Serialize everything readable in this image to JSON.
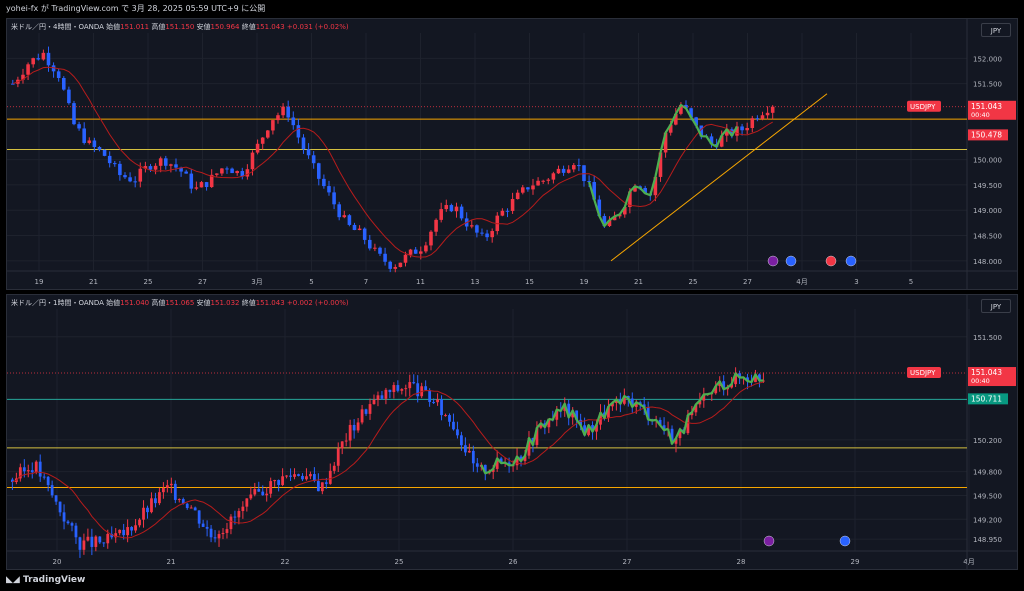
{
  "header": {
    "publish_line": "yohei-fx が TradingView.com で 3月 28, 2025 05:59 UTC+9 に公開"
  },
  "footer": {
    "brand": "TradingView"
  },
  "colors": {
    "up": "#089981",
    "bull": "#f23645",
    "bear": "#2962ff",
    "ma": "#b71c1c",
    "green": "#4caf50",
    "orange": "#f7a600",
    "yellow": "#d4c040",
    "teal": "#26a69a"
  },
  "chart_data": [
    {
      "type": "candlestick",
      "symbol_label": "米ドル／円・4時間・OANDA",
      "ohlc": {
        "open_label": "始値",
        "open": "151.011",
        "high_label": "高値",
        "high": "151.150",
        "low_label": "安値",
        "low": "150.964",
        "close_label": "終値",
        "close": "151.043",
        "change": "+0.031 (+0.02%)"
      },
      "currency_button": "JPY",
      "y_ticks": [
        "152.000",
        "151.500",
        "151.043",
        "150.478",
        "150.000",
        "149.500",
        "149.000",
        "148.500",
        "148.000"
      ],
      "y_tick_values": [
        152.0,
        151.5,
        151.043,
        150.478,
        150.0,
        149.5,
        149.0,
        148.5,
        148.0
      ],
      "ylim": [
        147.8,
        152.5
      ],
      "x_ticks": [
        "19",
        "21",
        "25",
        "27",
        "3月",
        "5",
        "7",
        "11",
        "13",
        "15",
        "19",
        "21",
        "25",
        "27",
        "4月",
        "3",
        "5"
      ],
      "price_label": {
        "symbol": "USDJPY",
        "price": "151.043",
        "countdown": "00:40"
      },
      "level_label": "150.478",
      "close_path": [
        151.5,
        151.9,
        152.1,
        151.7,
        150.7,
        150.3,
        150.1,
        149.7,
        149.6,
        149.9,
        150.0,
        149.8,
        149.4,
        149.6,
        149.9,
        149.7,
        150.2,
        150.8,
        151.0,
        150.3,
        149.7,
        149.2,
        148.7,
        148.5,
        148.1,
        147.9,
        148.1,
        148.3,
        148.9,
        149.1,
        148.7,
        148.4,
        148.9,
        149.2,
        149.5,
        149.6,
        149.8,
        150.0,
        149.4,
        148.6,
        149.0,
        149.6,
        149.3,
        150.6,
        151.1,
        150.6,
        150.3,
        150.5,
        150.6,
        150.9,
        151.1
      ],
      "levels": [
        150.8,
        150.478
      ],
      "trendline": [
        [
          0.8,
          148.0
        ],
        [
          1.0,
          151.3
        ]
      ]
    },
    {
      "type": "candlestick",
      "symbol_label": "米ドル／円・1時間・OANDA",
      "ohlc": {
        "open_label": "始値",
        "open": "151.040",
        "high_label": "高値",
        "high": "151.065",
        "low_label": "安値",
        "low": "151.032",
        "close_label": "終値",
        "close": "151.043",
        "change": "+0.002 (+0.00%)"
      },
      "currency_button": "JPY",
      "y_ticks": [
        "151.500",
        "151.043",
        "150.711",
        "150.200",
        "149.800",
        "149.500",
        "149.200",
        "148.950"
      ],
      "y_tick_values": [
        151.5,
        151.043,
        150.711,
        150.2,
        149.8,
        149.5,
        149.2,
        148.95
      ],
      "ylim": [
        148.8,
        151.85
      ],
      "x_ticks": [
        "20",
        "21",
        "22",
        "25",
        "26",
        "27",
        "28",
        "29",
        "4月"
      ],
      "price_label": {
        "symbol": "USDJPY",
        "price": "151.043",
        "countdown": "00:40"
      },
      "level_label": "150.711",
      "close_path": [
        149.7,
        149.9,
        149.4,
        148.9,
        148.9,
        149.0,
        149.3,
        149.6,
        149.4,
        149.0,
        149.2,
        149.5,
        149.7,
        149.8,
        149.6,
        150.2,
        150.6,
        150.8,
        150.9,
        150.7,
        150.4,
        149.8,
        149.9,
        150.0,
        150.4,
        150.6,
        150.3,
        150.6,
        150.7,
        150.5,
        150.2,
        150.6,
        150.9,
        151.0,
        151.0
      ],
      "levels": [
        150.711,
        150.2,
        149.6
      ],
      "ma_levels": []
    }
  ]
}
